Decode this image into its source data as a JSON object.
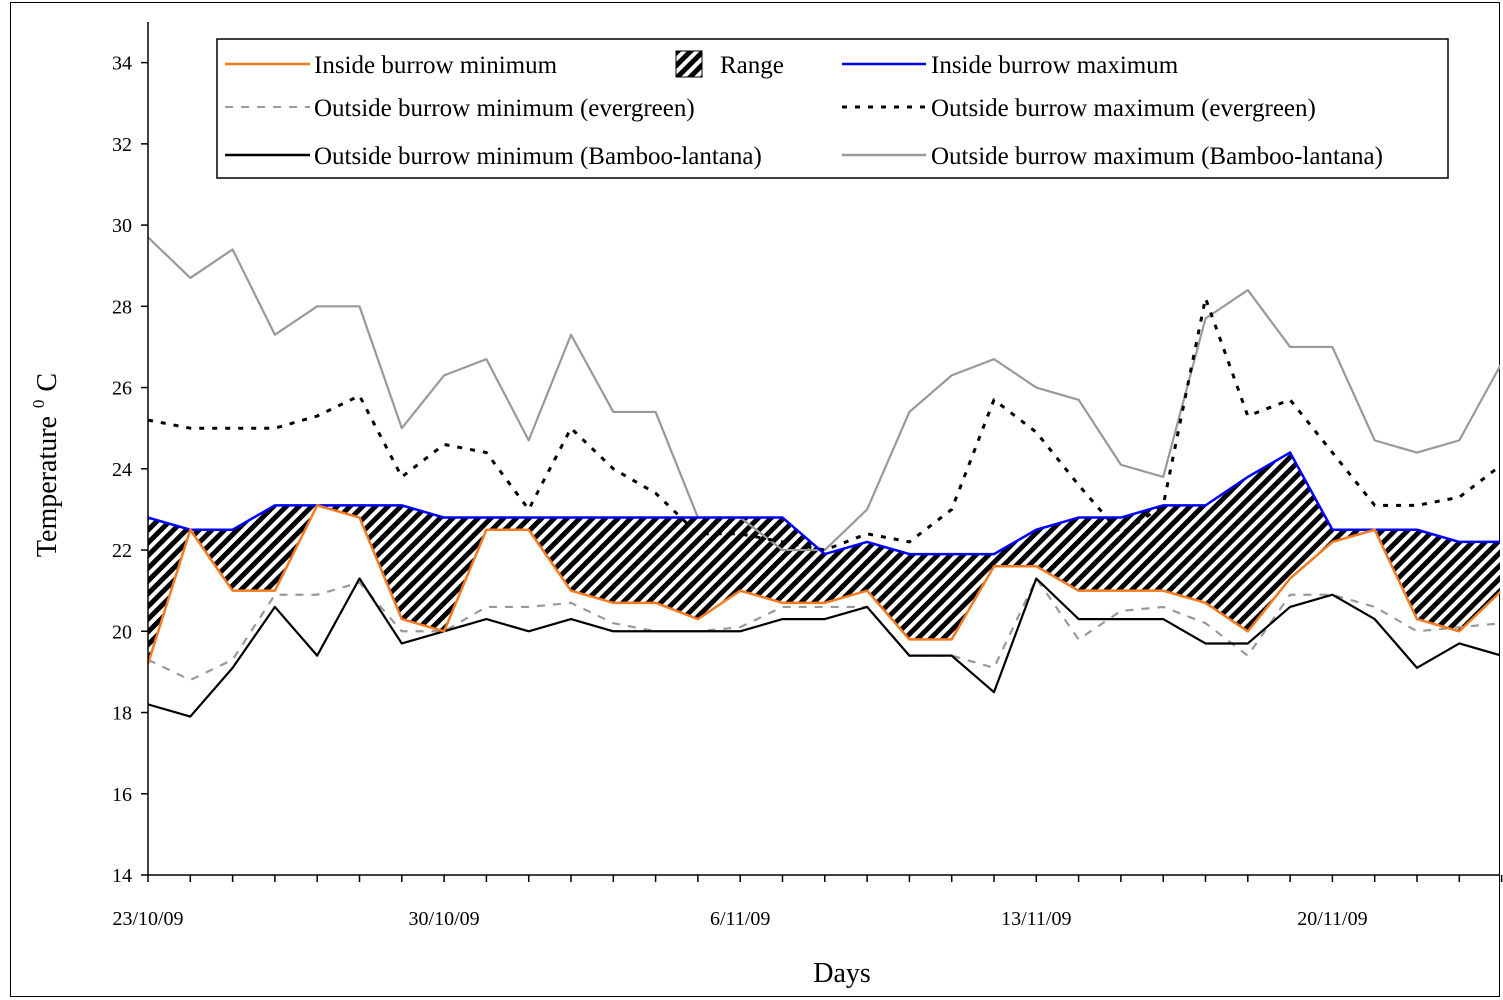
{
  "chart_data": {
    "type": "line",
    "title": "",
    "xlabel": "Days",
    "ylabel": "Temperature ° C",
    "ylabel_parts": [
      "Temperature",
      "0",
      "C"
    ],
    "ylim": [
      14,
      35
    ],
    "yticks": [
      14,
      16,
      18,
      20,
      22,
      24,
      26,
      28,
      30,
      32,
      34
    ],
    "x": [
      "23/10/09",
      "24/10/09",
      "25/10/09",
      "26/10/09",
      "27/10/09",
      "28/10/09",
      "29/10/09",
      "30/10/09",
      "31/10/09",
      "1/11/09",
      "2/11/09",
      "3/11/09",
      "4/11/09",
      "5/11/09",
      "6/11/09",
      "7/11/09",
      "8/11/09",
      "9/11/09",
      "10/11/09",
      "11/11/09",
      "12/11/09",
      "13/11/09",
      "14/11/09",
      "15/11/09",
      "16/11/09",
      "17/11/09",
      "18/11/09",
      "19/11/09",
      "20/11/09",
      "21/11/09",
      "22/11/09",
      "23/11/09",
      "24/11/09"
    ],
    "xtick_labels": [
      "23/10/09",
      "30/10/09",
      "6/11/09",
      "13/11/09",
      "20/11/09"
    ],
    "grid": false,
    "legend_position": "top",
    "range_fill": {
      "name": "Range",
      "between": [
        "Inside burrow minimum",
        "Inside burrow maximum"
      ],
      "pattern": "diagonal hatch",
      "color": "#000000"
    },
    "series": [
      {
        "name": "Inside burrow minimum",
        "color": "#f47a20",
        "style": "solid",
        "values": [
          19.2,
          22.5,
          21.0,
          21.0,
          23.1,
          22.8,
          20.3,
          20.0,
          22.5,
          22.5,
          21.0,
          20.7,
          20.7,
          20.3,
          21.0,
          20.7,
          20.7,
          21.0,
          19.8,
          19.8,
          21.6,
          21.6,
          21.0,
          21.0,
          21.0,
          20.7,
          20.0,
          21.3,
          22.2,
          22.5,
          20.3,
          20.0,
          21.0
        ]
      },
      {
        "name": "Inside burrow maximum",
        "color": "#0000ff",
        "style": "solid",
        "values": [
          22.8,
          22.5,
          22.5,
          23.1,
          23.1,
          23.1,
          23.1,
          22.8,
          22.8,
          22.8,
          22.8,
          22.8,
          22.8,
          22.8,
          22.8,
          22.8,
          21.9,
          22.2,
          21.9,
          21.9,
          21.9,
          22.5,
          22.8,
          22.8,
          23.1,
          23.1,
          23.8,
          24.4,
          22.5,
          22.5,
          22.5,
          22.2,
          22.2
        ]
      },
      {
        "name": "Outside burrow minimum (evergreen)",
        "color": "#999999",
        "style": "dashed",
        "values": [
          19.3,
          18.8,
          19.3,
          20.9,
          20.9,
          21.2,
          20.0,
          20.0,
          20.6,
          20.6,
          20.7,
          20.2,
          20.0,
          20.0,
          20.1,
          20.6,
          20.6,
          20.6,
          19.4,
          19.4,
          19.1,
          21.3,
          19.8,
          20.5,
          20.6,
          20.2,
          19.4,
          20.9,
          20.9,
          20.6,
          20.0,
          20.1,
          20.2
        ]
      },
      {
        "name": "Outside burrow maximum (evergreen)",
        "color": "#000000",
        "style": "dotted",
        "values": [
          25.2,
          25.0,
          25.0,
          25.0,
          25.3,
          25.8,
          23.8,
          24.6,
          24.4,
          23.0,
          25.0,
          24.0,
          23.4,
          22.4,
          22.4,
          22.2,
          22.0,
          22.4,
          22.2,
          23.0,
          25.7,
          24.9,
          23.6,
          22.4,
          23.1,
          28.2,
          25.3,
          25.7,
          24.4,
          23.1,
          23.1,
          23.3,
          24.1
        ]
      },
      {
        "name": "Outside burrow minimum (Bamboo-lantana)",
        "color": "#000000",
        "style": "solid",
        "values": [
          18.2,
          17.9,
          19.1,
          20.6,
          19.4,
          21.3,
          19.7,
          20.0,
          20.3,
          20.0,
          20.3,
          20.0,
          20.0,
          20.0,
          20.0,
          20.3,
          20.3,
          20.6,
          19.4,
          19.4,
          18.5,
          21.3,
          20.3,
          20.3,
          20.3,
          19.7,
          19.7,
          20.6,
          20.9,
          20.3,
          19.1,
          19.7,
          19.4
        ]
      },
      {
        "name": "Outside burrow maximum (Bamboo-lantana)",
        "color": "#999999",
        "style": "solid",
        "values": [
          29.7,
          28.7,
          29.4,
          27.3,
          28.0,
          28.0,
          25.0,
          26.3,
          26.7,
          24.7,
          27.3,
          25.4,
          25.4,
          22.8,
          22.8,
          22.0,
          22.0,
          23.0,
          25.4,
          26.3,
          26.7,
          26.0,
          25.7,
          24.1,
          23.8,
          27.7,
          28.4,
          27.0,
          27.0,
          24.7,
          24.4,
          24.7,
          26.6
        ]
      }
    ]
  }
}
